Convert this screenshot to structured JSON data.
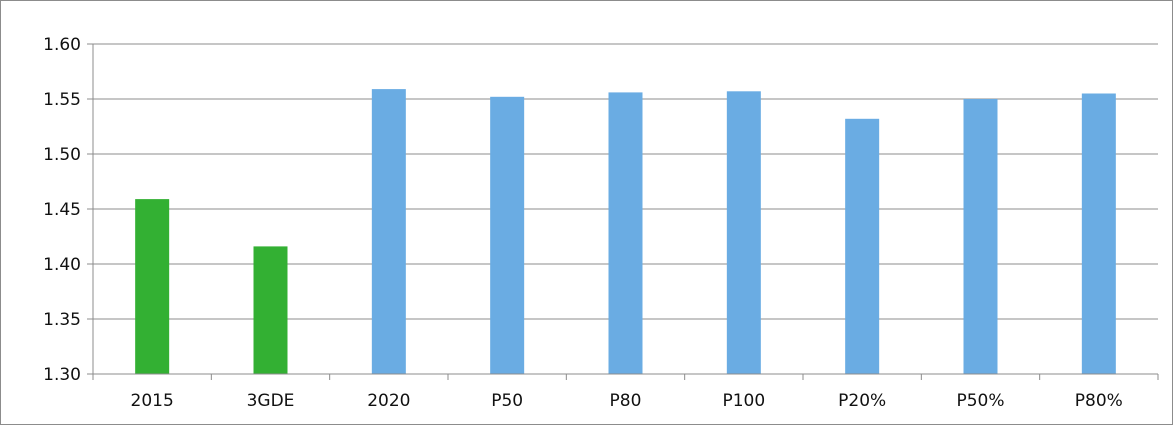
{
  "chart_data": {
    "type": "bar",
    "title": "",
    "xlabel": "",
    "ylabel": "",
    "ylim": [
      1.3,
      1.6
    ],
    "yticks": [
      "1.30",
      "1.35",
      "1.40",
      "1.45",
      "1.50",
      "1.55",
      "1.60"
    ],
    "categories": [
      "2015",
      "3GDE",
      "2020",
      "P50",
      "P80",
      "P100",
      "P20%",
      "P50%",
      "P80%"
    ],
    "values": [
      1.459,
      1.416,
      1.559,
      1.552,
      1.556,
      1.557,
      1.532,
      1.55,
      1.555
    ],
    "bar_colors": [
      "#33b033",
      "#33b033",
      "#6aace3",
      "#6aace3",
      "#6aace3",
      "#6aace3",
      "#6aace3",
      "#6aace3",
      "#6aace3"
    ],
    "grid": true,
    "legend": "none"
  },
  "colors": {
    "gridline": "#8c8c8c",
    "axis": "#8c8c8c",
    "frame": "#8c8c8c"
  }
}
